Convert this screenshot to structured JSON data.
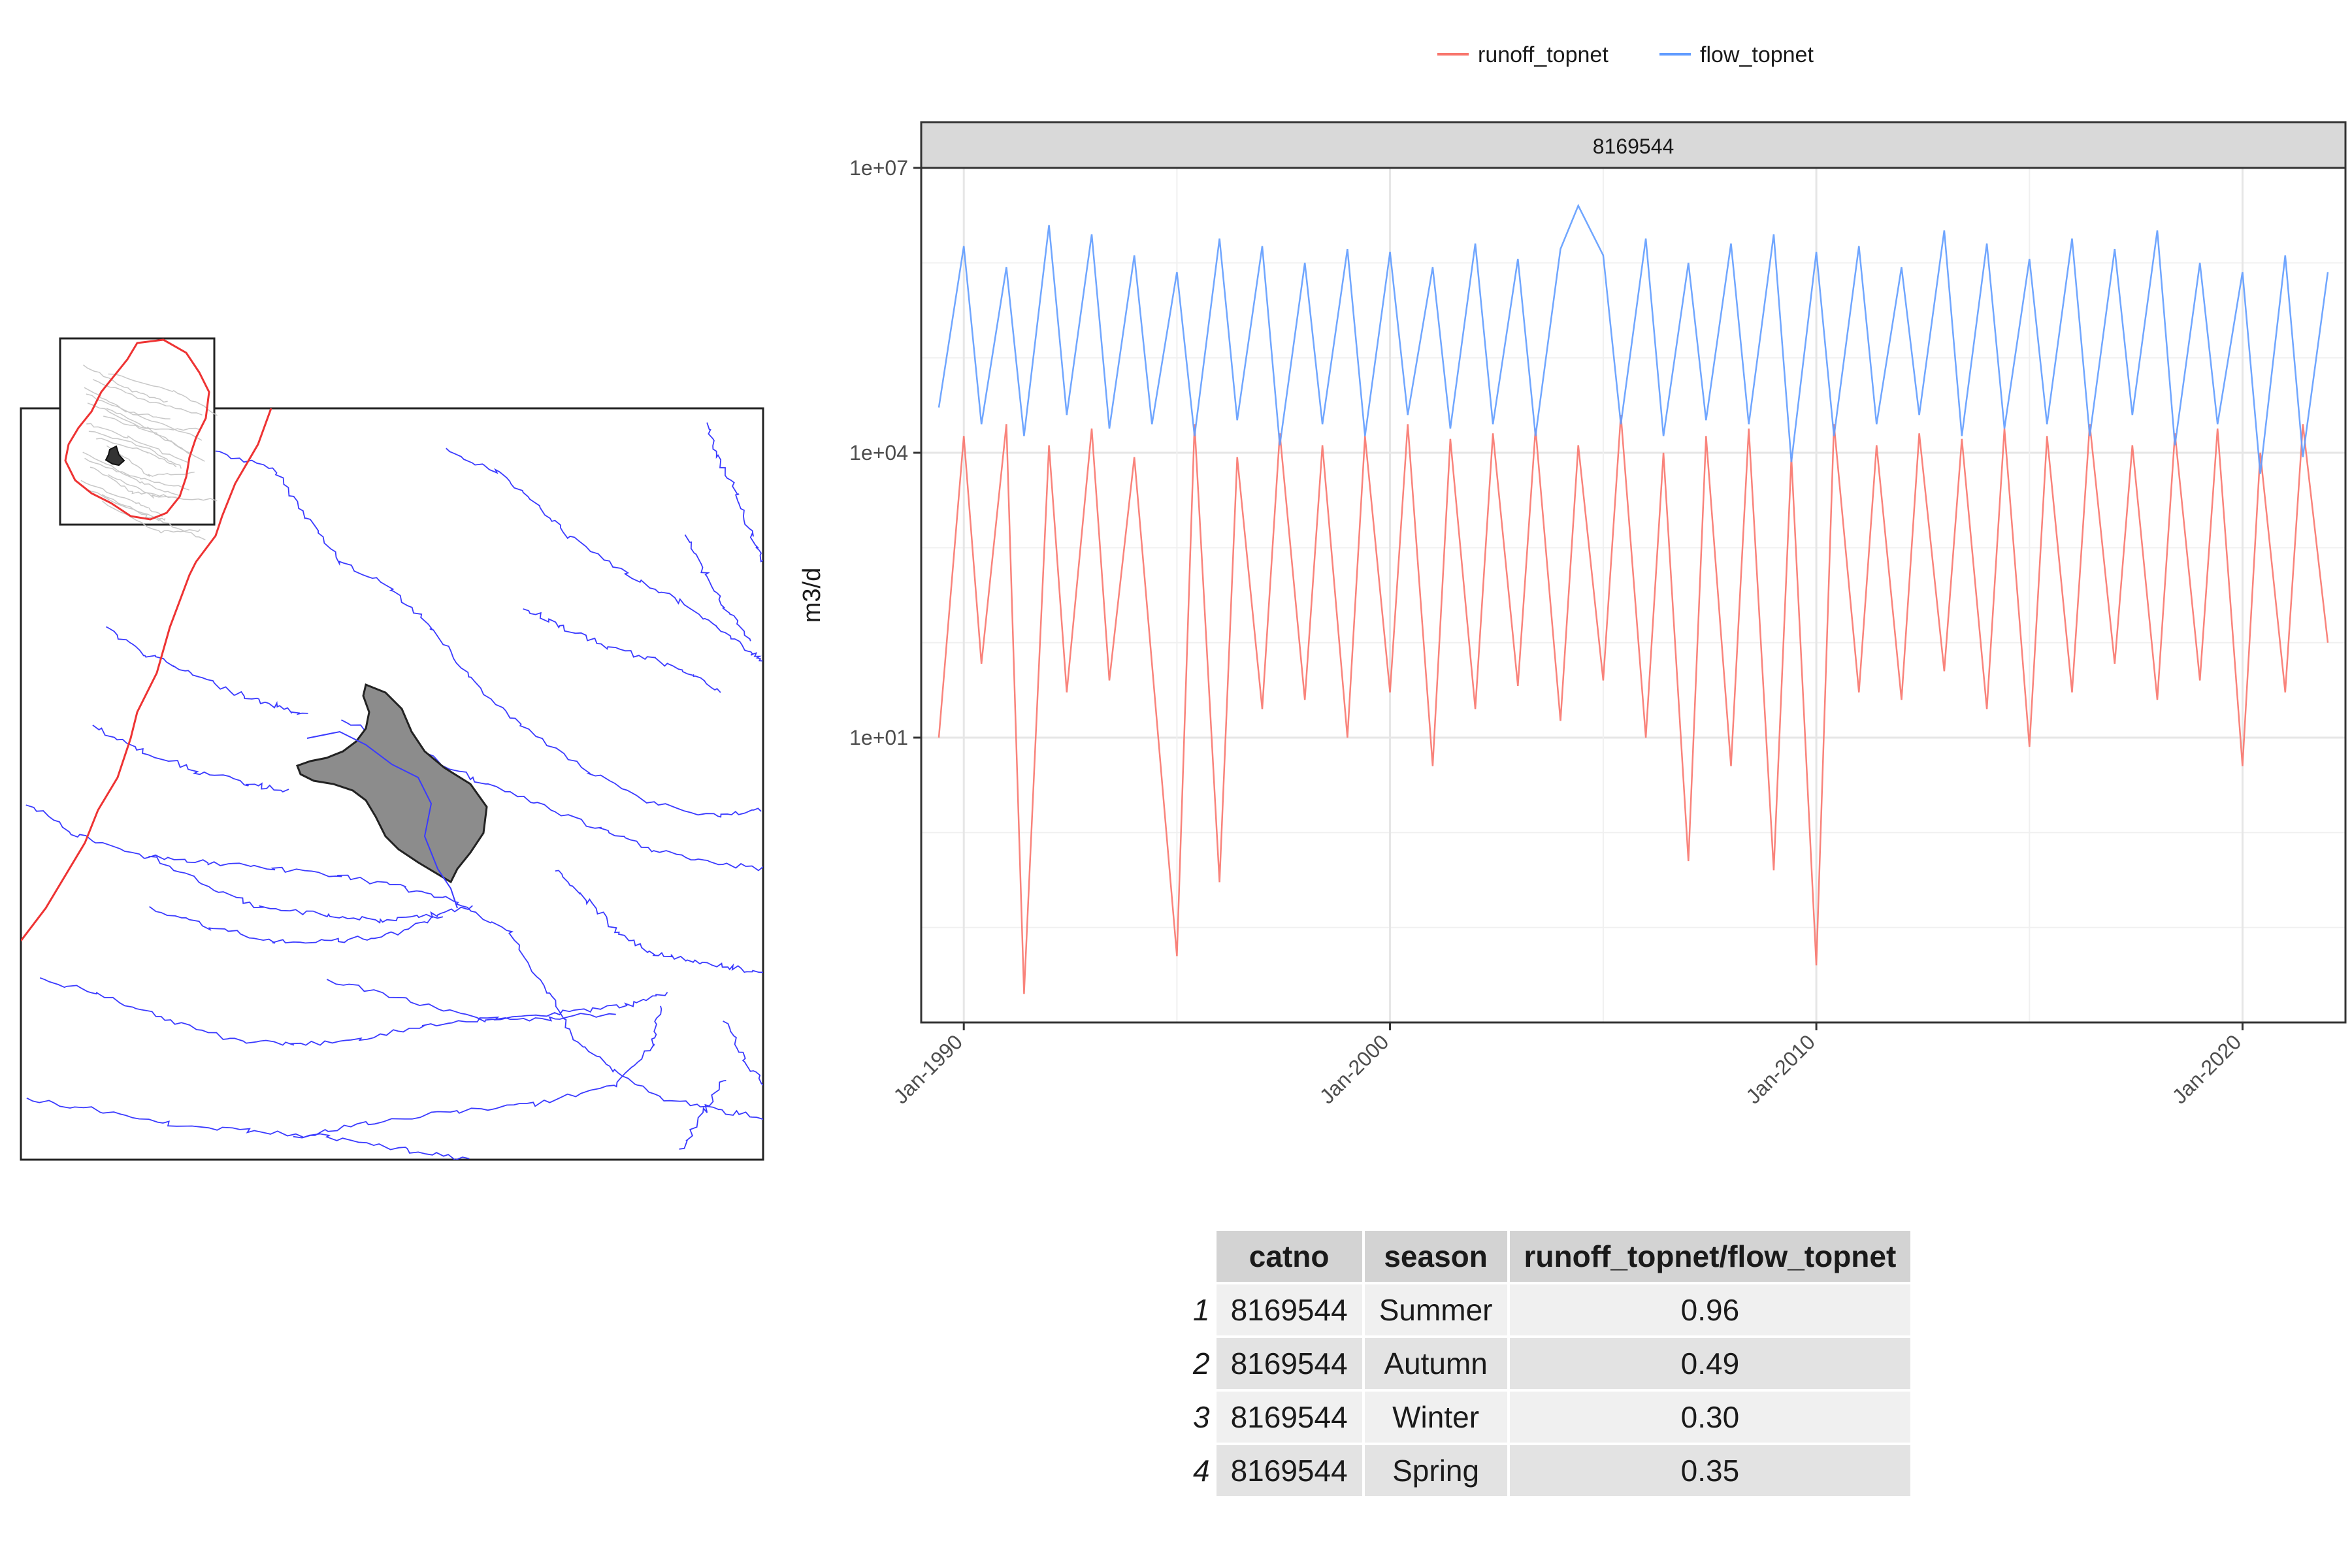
{
  "chart_data": {
    "type": "line",
    "facet_label": "8169544",
    "ylabel": "m3/d",
    "xlabel": "",
    "y_scale": "log10",
    "ylim": [
      0.01,
      10000000
    ],
    "y_ticks": [
      "1e+01",
      "1e+04",
      "1e+07"
    ],
    "xlim": [
      "1989-01-01",
      "2022-06-01"
    ],
    "x_ticks": [
      "Jan-1990",
      "Jan-2000",
      "Jan-2010",
      "Jan-2020"
    ],
    "legend_position": "top",
    "grid": true,
    "series": [
      {
        "name": "runoff_topnet",
        "color": "#f8766d",
        "x": [
          "1989-06",
          "1990-01",
          "1990-06",
          "1991-01",
          "1991-06",
          "1992-01",
          "1992-06",
          "1993-01",
          "1993-06",
          "1994-01",
          "1994-06",
          "1995-01",
          "1995-06",
          "1996-01",
          "1996-06",
          "1997-01",
          "1997-06",
          "1998-01",
          "1998-06",
          "1999-01",
          "1999-06",
          "2000-01",
          "2000-06",
          "2001-01",
          "2001-06",
          "2002-01",
          "2002-06",
          "2003-01",
          "2003-06",
          "2004-01",
          "2004-06",
          "2005-01",
          "2005-06",
          "2006-01",
          "2006-06",
          "2007-01",
          "2007-06",
          "2008-01",
          "2008-06",
          "2009-01",
          "2009-06",
          "2010-01",
          "2010-06",
          "2011-01",
          "2011-06",
          "2012-01",
          "2012-06",
          "2013-01",
          "2013-06",
          "2014-01",
          "2014-06",
          "2015-01",
          "2015-06",
          "2016-01",
          "2016-06",
          "2017-01",
          "2017-06",
          "2018-01",
          "2018-06",
          "2019-01",
          "2019-06",
          "2020-01",
          "2020-06",
          "2021-01",
          "2021-06",
          "2022-01"
        ],
        "values": [
          10,
          15000,
          60,
          20000,
          0.02,
          12000,
          30,
          18000,
          40,
          9000,
          60,
          0.05,
          20000,
          0.3,
          9000,
          20,
          16000,
          25,
          12000,
          10,
          15000,
          30,
          20000,
          5,
          14000,
          20,
          16000,
          35,
          18000,
          15,
          12000,
          40,
          25000,
          10,
          10000,
          0.5,
          15000,
          5,
          18000,
          0.4,
          9000,
          0.04,
          20000,
          30,
          12000,
          25,
          16000,
          50,
          14000,
          20,
          18000,
          8,
          15000,
          30,
          20000,
          60,
          12000,
          25,
          16000,
          40,
          18000,
          5,
          10000,
          30,
          20000,
          100
        ]
      },
      {
        "name": "flow_topnet",
        "color": "#619cff",
        "x": [
          "1989-06",
          "1990-01",
          "1990-06",
          "1991-01",
          "1991-06",
          "1992-01",
          "1992-06",
          "1993-01",
          "1993-06",
          "1994-01",
          "1994-06",
          "1995-01",
          "1995-06",
          "1996-01",
          "1996-06",
          "1997-01",
          "1997-06",
          "1998-01",
          "1998-06",
          "1999-01",
          "1999-06",
          "2000-01",
          "2000-06",
          "2001-01",
          "2001-06",
          "2002-01",
          "2002-06",
          "2003-01",
          "2003-06",
          "2004-01",
          "2004-06",
          "2005-01",
          "2005-06",
          "2006-01",
          "2006-06",
          "2007-01",
          "2007-06",
          "2008-01",
          "2008-06",
          "2009-01",
          "2009-06",
          "2010-01",
          "2010-06",
          "2011-01",
          "2011-06",
          "2012-01",
          "2012-06",
          "2013-01",
          "2013-06",
          "2014-01",
          "2014-06",
          "2015-01",
          "2015-06",
          "2016-01",
          "2016-06",
          "2017-01",
          "2017-06",
          "2018-01",
          "2018-06",
          "2019-01",
          "2019-06",
          "2020-01",
          "2020-06",
          "2021-01",
          "2021-06",
          "2022-01"
        ],
        "values": [
          30000,
          1500000,
          20000,
          900000,
          15000,
          2500000,
          25000,
          2000000,
          18000,
          1200000,
          20000,
          800000,
          15000,
          1800000,
          22000,
          1500000,
          12000,
          1000000,
          20000,
          1400000,
          15000,
          1300000,
          25000,
          900000,
          18000,
          1600000,
          20000,
          1100000,
          15000,
          1400000,
          4000000,
          1200000,
          20000,
          1800000,
          15000,
          1000000,
          22000,
          1600000,
          20000,
          2000000,
          8000,
          1300000,
          15000,
          1500000,
          20000,
          900000,
          25000,
          2200000,
          15000,
          1600000,
          18000,
          1100000,
          20000,
          1800000,
          15000,
          1400000,
          25000,
          2200000,
          12000,
          1000000,
          20000,
          800000,
          6000,
          1200000,
          9000,
          800000
        ]
      }
    ]
  },
  "stats_table": {
    "headers": [
      "catno",
      "season",
      "runoff_topnet/flow_topnet"
    ],
    "rows": [
      {
        "index": "1",
        "catno": "8169544",
        "season": "Summer",
        "ratio": "0.96"
      },
      {
        "index": "2",
        "catno": "8169544",
        "season": "Autumn",
        "ratio": "0.49"
      },
      {
        "index": "3",
        "catno": "8169544",
        "season": "Winter",
        "ratio": "0.30"
      },
      {
        "index": "4",
        "catno": "8169544",
        "season": "Spring",
        "ratio": "0.35"
      }
    ]
  },
  "map": {
    "river_color": "#3a3aff",
    "boundary_color": "#ee3333",
    "catchment_fill": "#8c8c8c",
    "inset_stream_color": "#c8c8c8"
  }
}
